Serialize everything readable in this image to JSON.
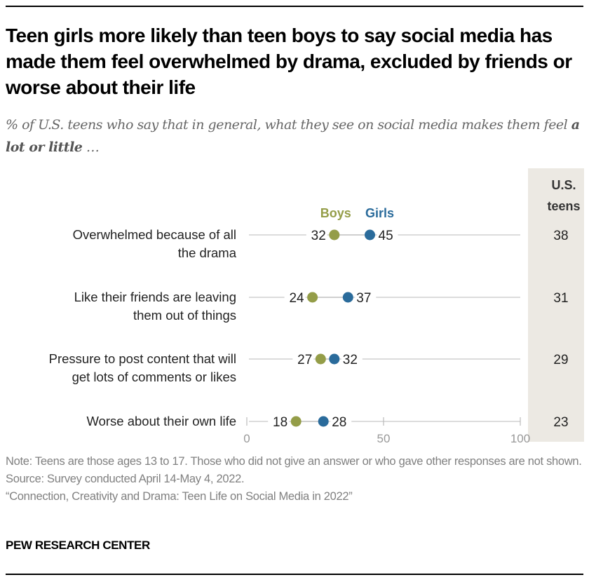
{
  "header": {
    "title": "Teen girls more likely than teen boys to say social media has made them feel overwhelmed by drama, excluded by friends or worse about their life",
    "subtitle_prefix": "% of U.S. teens who say that in general, what they see on social media makes them feel ",
    "subtitle_bold": "a lot or little",
    "subtitle_suffix": " …"
  },
  "chart_data": {
    "type": "scatter",
    "subtype": "dot-plot",
    "title": "Teen girls more likely than teen boys to say social media has made them feel overwhelmed by drama, excluded by friends or worse about their life",
    "categories": [
      "Overwhelmed because of all the drama",
      "Like their friends are leaving them out of things",
      "Pressure to post content that will get lots of comments or likes",
      "Worse about their own life"
    ],
    "category_lines": [
      [
        "Overwhelmed because of all",
        "the drama"
      ],
      [
        "Like their friends are leaving",
        "them out of things"
      ],
      [
        "Pressure to post content that will",
        "get lots of comments or likes"
      ],
      [
        "Worse about their own life"
      ]
    ],
    "series": [
      {
        "name": "Boys",
        "color": "#949d48",
        "values": [
          32,
          24,
          27,
          18
        ]
      },
      {
        "name": "Girls",
        "color": "#2a6b9b",
        "values": [
          45,
          37,
          32,
          28
        ]
      }
    ],
    "us_teens": {
      "header_lines": [
        "U.S.",
        "teens"
      ],
      "values": [
        38,
        31,
        29,
        23
      ]
    },
    "xlim": [
      0,
      100
    ],
    "xticks": [
      0,
      50,
      100
    ],
    "xlabel": "",
    "ylabel": "",
    "legend_placement": "top-inline",
    "grid": false
  },
  "footer": {
    "note": "Note: Teens are those ages 13 to 17. Those who did not give an answer or who gave other responses are not shown.",
    "source": "Source: Survey conducted April 14-May 4, 2022.",
    "report": "“Connection, Creativity and Drama: Teen Life on Social Media in 2022”",
    "brand": "PEW RESEARCH CENTER"
  }
}
